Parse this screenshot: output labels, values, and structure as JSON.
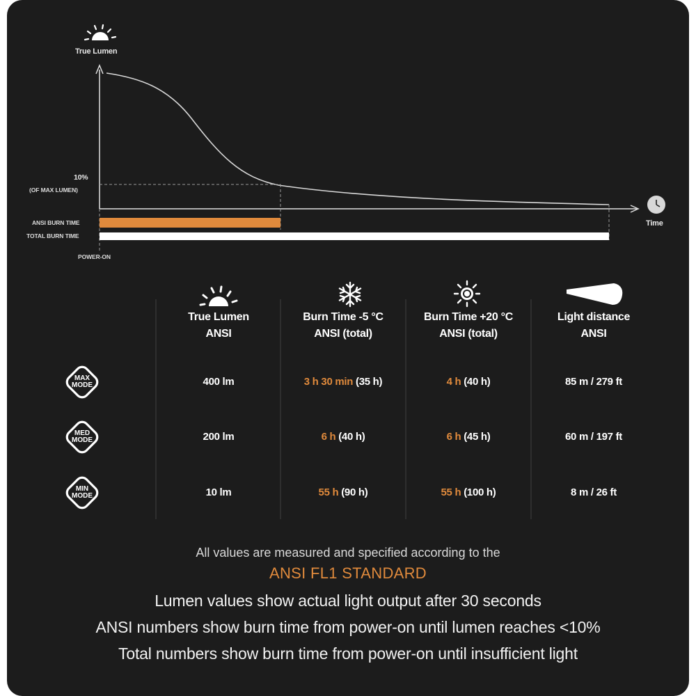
{
  "graph": {
    "y_label": "True Lumen",
    "ten_percent": "10%",
    "of_max": "(OF MAX LUMEN)",
    "x_label": "Time",
    "ansi_bar_label": "ANSI BURN TIME",
    "total_bar_label": "TOTAL BURN TIME",
    "power_on_label": "POWER-ON",
    "ansi_bar_color": "#e08a3c",
    "total_bar_color": "#ffffff"
  },
  "table": {
    "headers": [
      {
        "icon": "sunrise-icon",
        "line1": "True Lumen",
        "line2": "ANSI"
      },
      {
        "icon": "snowflake-icon",
        "line1": "Burn Time -5 °C",
        "line2": "ANSI  (total)"
      },
      {
        "icon": "sun-icon",
        "line1": "Burn Time +20 °C",
        "line2": "ANSI  (total)"
      },
      {
        "icon": "beam-icon",
        "line1": "Light distance",
        "line2": "ANSI"
      }
    ],
    "rows": [
      {
        "mode_line1": "MAX",
        "mode_line2": "MODE",
        "lumen": "400 lm",
        "cold_ansi": "3 h 30 min",
        "cold_total": "(35 h)",
        "warm_ansi": "4 h",
        "warm_total": "(40 h)",
        "distance": "85 m / 279 ft"
      },
      {
        "mode_line1": "MED",
        "mode_line2": "MODE",
        "lumen": "200 lm",
        "cold_ansi": "6 h",
        "cold_total": "(40 h)",
        "warm_ansi": "6 h",
        "warm_total": "(45 h)",
        "distance": "60 m / 197 ft"
      },
      {
        "mode_line1": "MIN",
        "mode_line2": "MODE",
        "lumen": "10 lm",
        "cold_ansi": "55 h",
        "cold_total": "(90 h)",
        "warm_ansi": "55 h",
        "warm_total": "(100 h)",
        "distance": "8 m / 26 ft"
      }
    ]
  },
  "footer": {
    "line1": "All values are measured and specified according to the",
    "standard": "ANSI FL1 STANDARD",
    "note1": "Lumen values show actual light output after 30 seconds",
    "note2": "ANSI numbers show burn time from power-on until lumen reaches <10%",
    "note3": "Total numbers show burn time from power-on until insufficient light"
  },
  "colors": {
    "accent": "#e08a3c",
    "background": "#1c1c1c",
    "text": "#ffffff"
  }
}
